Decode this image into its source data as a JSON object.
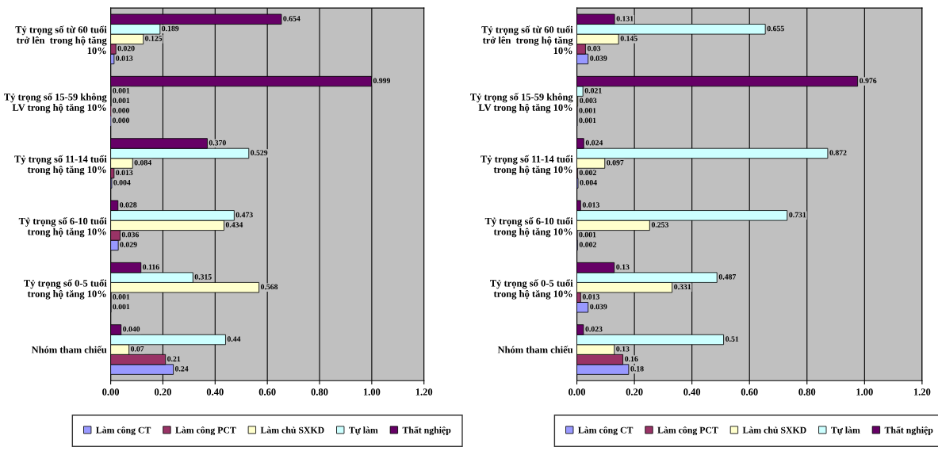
{
  "chart_data": [
    {
      "type": "bar",
      "orientation": "horizontal",
      "categories": [
        "Tỷ trọng số từ 60 tuổi\ntrở lên  trong hộ tăng\n10%",
        "Tỷ trọng số 15-59 không\nLV trong hộ tăng 10%",
        "Tỷ trọng số 11-14 tuổi\ntrong hộ tăng 10%",
        "Tỷ trọng số 6-10 tuổi\ntrong hộ tăng 10%",
        "Tỷ trọng số 0-5 tuổi\ntrong hộ tăng 10%",
        "Nhóm tham chiếu"
      ],
      "series": [
        {
          "name": "Làm công CT",
          "color": "#9999ff",
          "values": [
            0.013,
            0.0,
            0.004,
            0.029,
            0.001,
            0.24
          ],
          "value_labels": [
            "0.013",
            "0.000",
            "0.004",
            "0.029",
            "0.001",
            "0.24"
          ]
        },
        {
          "name": "Làm công PCT",
          "color": "#993366",
          "values": [
            0.02,
            0.0,
            0.013,
            0.036,
            0.001,
            0.21
          ],
          "value_labels": [
            "0.020",
            "0.000",
            "0.013",
            "0.036",
            "0.001",
            "0.21"
          ]
        },
        {
          "name": "Làm chủ SXKD",
          "color": "#ffffcc",
          "values": [
            0.125,
            0.001,
            0.084,
            0.434,
            0.568,
            0.07
          ],
          "value_labels": [
            "0.125",
            "0.001",
            "0.084",
            "0.434",
            "0.568",
            "0.07"
          ]
        },
        {
          "name": "Tự làm",
          "color": "#ccffff",
          "values": [
            0.189,
            0.001,
            0.529,
            0.473,
            0.315,
            0.44
          ],
          "value_labels": [
            "0.189",
            "0.001",
            "0.529",
            "0.473",
            "0.315",
            "0.44"
          ]
        },
        {
          "name": "Thất nghiệp",
          "color": "#660066",
          "values": [
            0.654,
            0.999,
            0.37,
            0.028,
            0.116,
            0.04
          ],
          "value_labels": [
            "0.654",
            "0.999",
            "0.370",
            "0.028",
            "0.116",
            "0.040"
          ]
        }
      ],
      "xlim": [
        0,
        1.2
      ],
      "xticks": [
        {
          "value": 0,
          "label": "0.00"
        },
        {
          "value": 0.2,
          "label": "0.20"
        },
        {
          "value": 0.4,
          "label": "0.40"
        },
        {
          "value": 0.6,
          "label": "0.60"
        },
        {
          "value": 0.8,
          "label": "0.80"
        },
        {
          "value": 1.0,
          "label": "1.00"
        },
        {
          "value": 1.2,
          "label": "1.20"
        }
      ],
      "grid": "x",
      "legend": "bottom"
    },
    {
      "type": "bar",
      "orientation": "horizontal",
      "categories": [
        "Tỷ trọng số từ 60 tuổi\ntrở lên  trong hộ tăng\n10%",
        "Tỷ trọng số 15-59 không\nLV trong hộ tăng 10%",
        "Tỷ trọng số 11-14 tuổi\ntrong hộ tăng 10%",
        "Tỷ trọng số 6-10 tuổi\ntrong hộ tăng 10%",
        "Tỷ trọng số 0-5 tuổi\ntrong hộ tăng 10%",
        "Nhóm tham chiếu"
      ],
      "series": [
        {
          "name": "Làm công CT",
          "color": "#9999ff",
          "values": [
            0.039,
            0.001,
            0.004,
            0.002,
            0.039,
            0.18
          ],
          "value_labels": [
            "0.039",
            "0.001",
            "0.004",
            "0.002",
            "0.039",
            "0.18"
          ]
        },
        {
          "name": "Làm công PCT",
          "color": "#993366",
          "values": [
            0.03,
            0.001,
            0.002,
            0.001,
            0.013,
            0.16
          ],
          "value_labels": [
            "0.03",
            "0.001",
            "0.002",
            "0.001",
            "0.013",
            "0.16"
          ]
        },
        {
          "name": "Làm chủ SXKD",
          "color": "#ffffcc",
          "values": [
            0.145,
            0.003,
            0.097,
            0.253,
            0.331,
            0.13
          ],
          "value_labels": [
            "0.145",
            "0.003",
            "0.097",
            "0.253",
            "0.331",
            "0.13"
          ]
        },
        {
          "name": "Tự làm",
          "color": "#ccffff",
          "values": [
            0.655,
            0.021,
            0.872,
            0.731,
            0.487,
            0.51
          ],
          "value_labels": [
            "0.655",
            "0.021",
            "0.872",
            "0.731",
            "0.487",
            "0.51"
          ]
        },
        {
          "name": "Thất nghiệp",
          "color": "#660066",
          "values": [
            0.131,
            0.976,
            0.024,
            0.013,
            0.13,
            0.023
          ],
          "value_labels": [
            "0.131",
            "0.976",
            "0.024",
            "0.013",
            "0.13",
            "0.023"
          ]
        }
      ],
      "xlim": [
        0,
        1.2
      ],
      "xticks": [
        {
          "value": 0,
          "label": "0.00"
        },
        {
          "value": 0.2,
          "label": "0.20"
        },
        {
          "value": 0.4,
          "label": "0.40"
        },
        {
          "value": 0.6,
          "label": "0.60"
        },
        {
          "value": 0.8,
          "label": "0.80"
        },
        {
          "value": 1.0,
          "label": "1.00"
        },
        {
          "value": 1.2,
          "label": "1.20"
        }
      ],
      "grid": "x",
      "legend": "bottom"
    }
  ]
}
